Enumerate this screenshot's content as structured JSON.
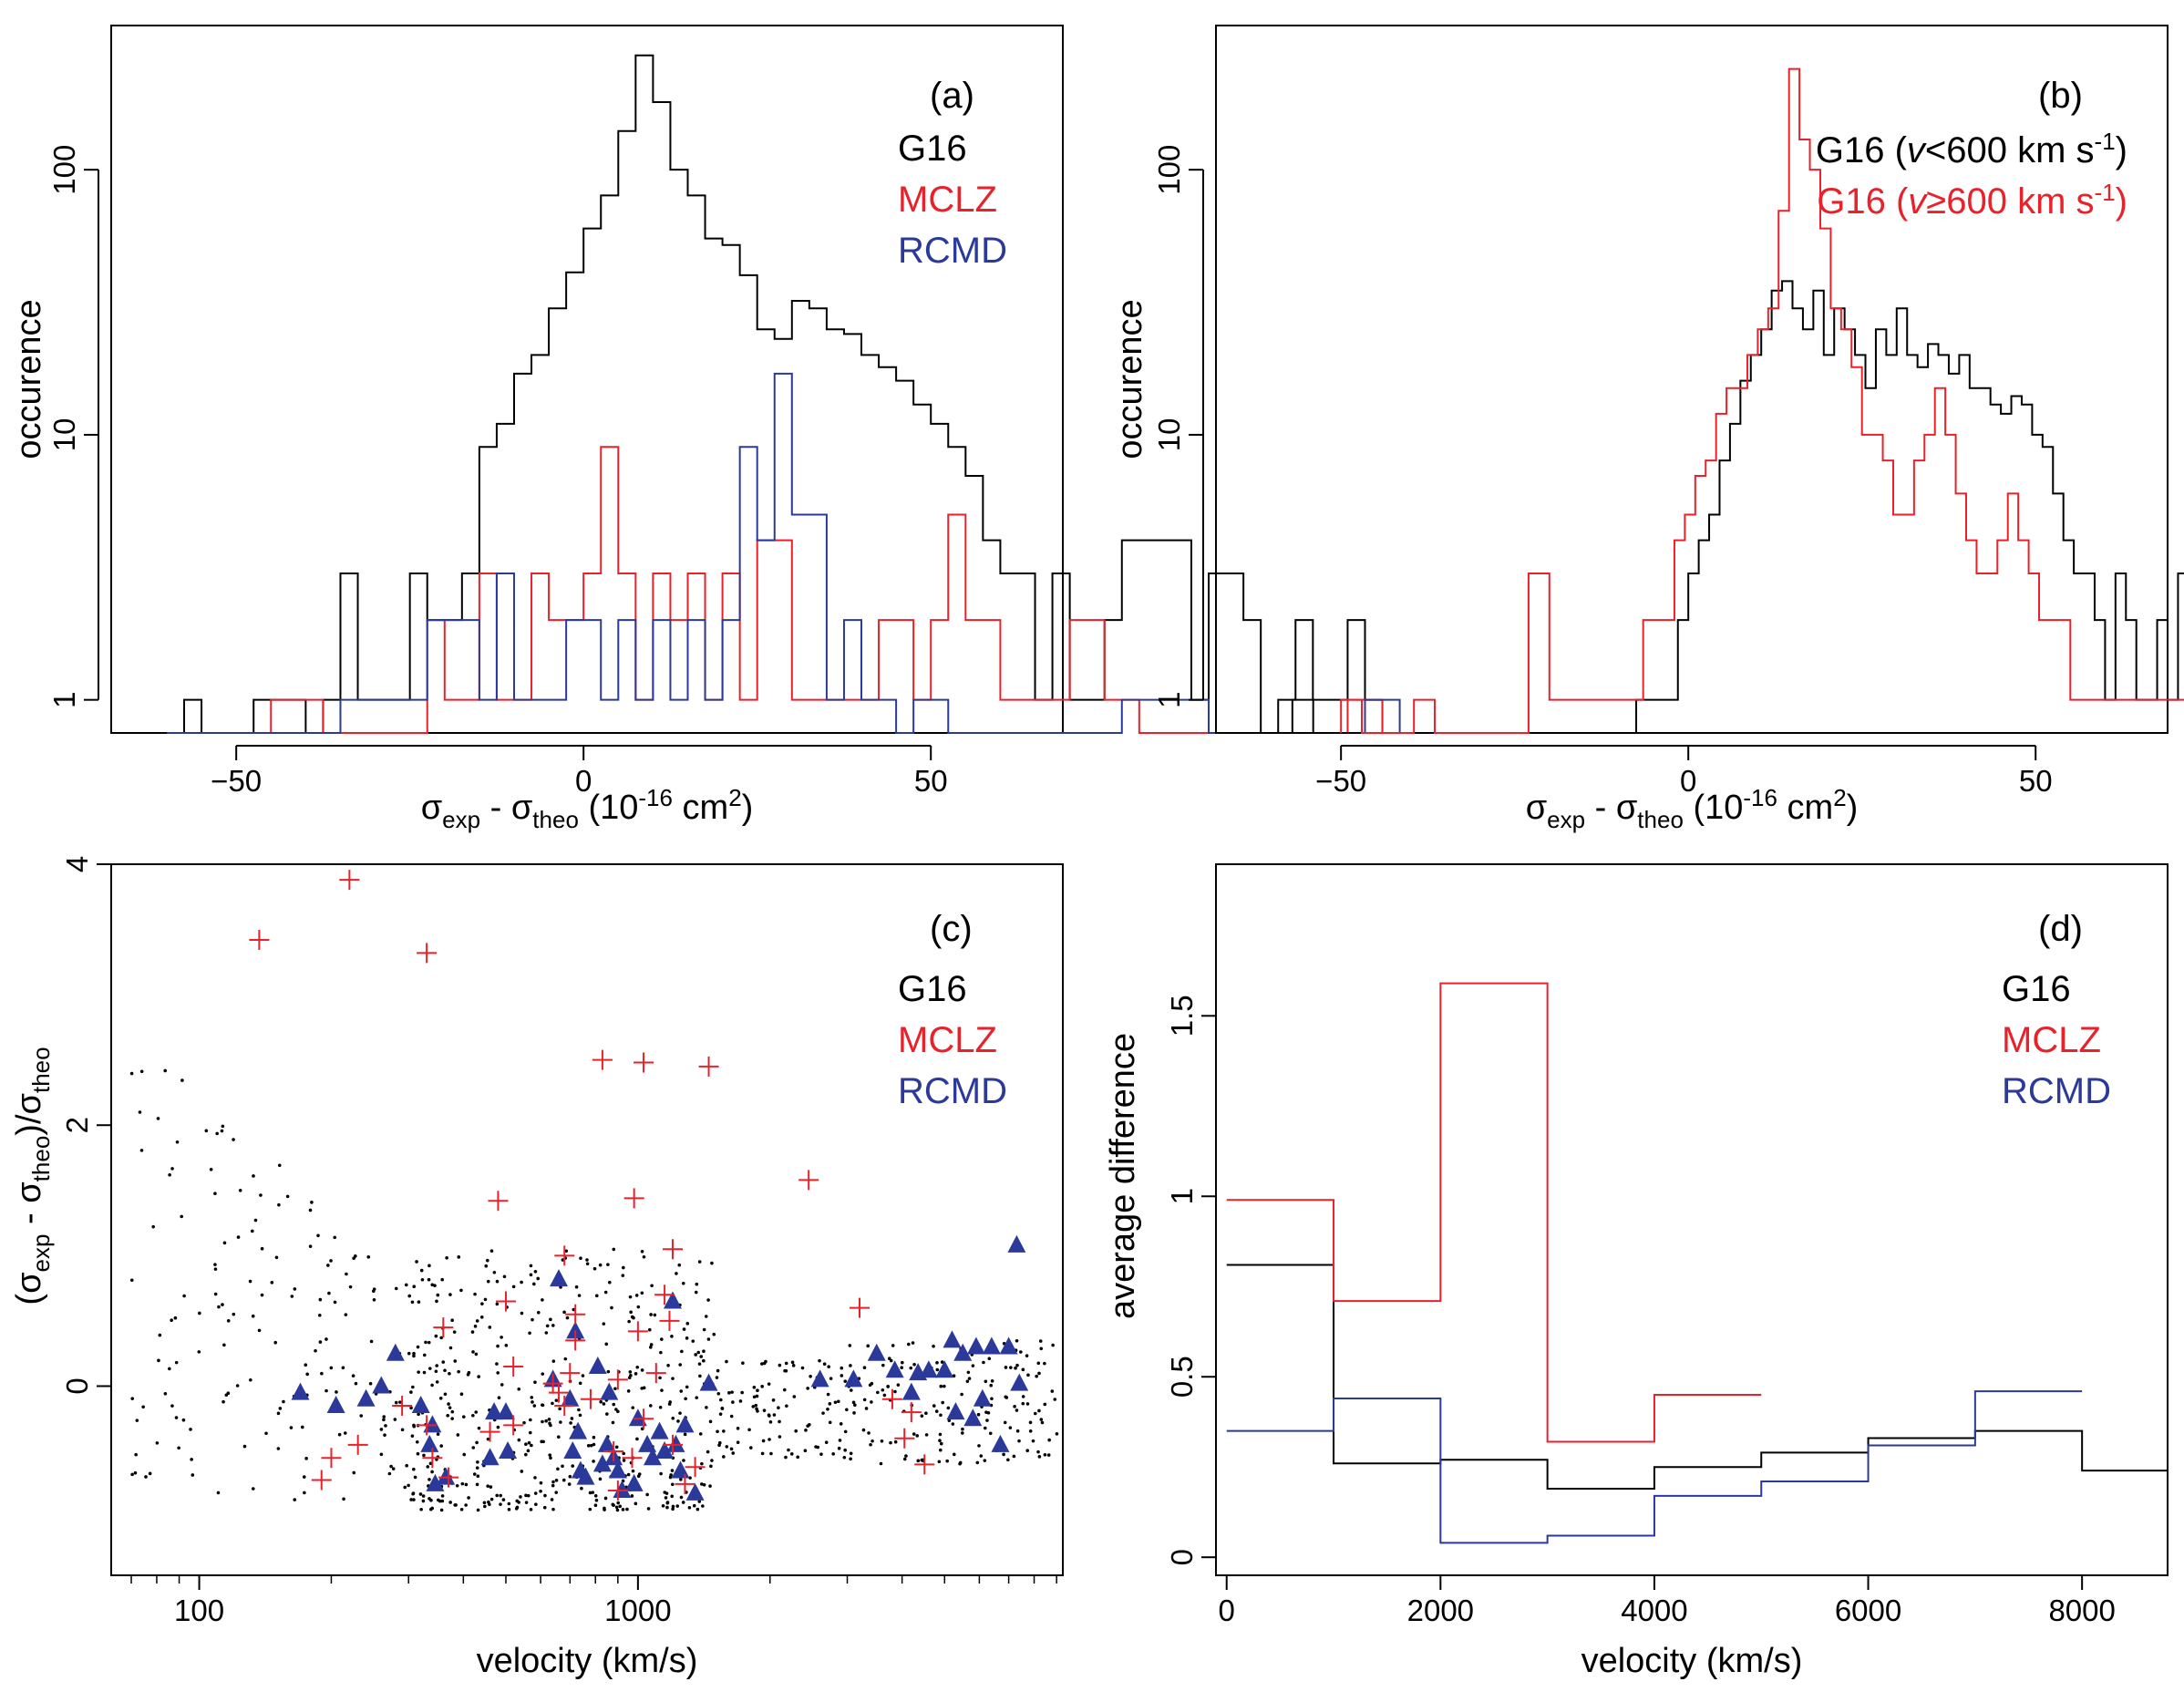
{
  "colors": {
    "black": "#000000",
    "red": "#e8212b",
    "blue": "#2b3a9a"
  },
  "chart_data": [
    {
      "panel": "a",
      "type": "histogram-step",
      "panel_label": "(a)",
      "xlabel": {
        "main": "σ",
        "sub1": "exp",
        "mid": " - σ",
        "sub2": "theo",
        "tail": " (10",
        "sup": "-16",
        "end": " cm",
        "sup2": "2",
        "close": ")"
      },
      "ylabel": "occurence",
      "xlim": [
        -68,
        69
      ],
      "ylim_log": [
        0.75,
        350
      ],
      "x_ticks": [
        -50,
        0,
        50
      ],
      "x_tick_labels": [
        "−50",
        "0",
        "50"
      ],
      "y_ticks": [
        1,
        10,
        100
      ],
      "y_tick_labels": [
        "1",
        "10",
        "100"
      ],
      "bin_width": 2.5,
      "legend": [
        {
          "label": "G16",
          "color": "#000000"
        },
        {
          "label": "MCLZ",
          "color": "#e8212b"
        },
        {
          "label": "RCMD",
          "color": "#2b3a9a"
        }
      ],
      "series": [
        {
          "name": "G16",
          "color": "#000000",
          "start": -60,
          "values": [
            0,
            1,
            0,
            0,
            0,
            1,
            1,
            1,
            0,
            1,
            3,
            1,
            1,
            1,
            3,
            2,
            2,
            3,
            9,
            11,
            17,
            20,
            30,
            41,
            60,
            80,
            140,
            270,
            180,
            100,
            80,
            55,
            52,
            40,
            25,
            23,
            32,
            30,
            25,
            24,
            20,
            18,
            16,
            13,
            11,
            9,
            7,
            4,
            3,
            3,
            1,
            3,
            1,
            1,
            2,
            4,
            4,
            4,
            4,
            1,
            3,
            3,
            2,
            0,
            1,
            2,
            1,
            1,
            2,
            1,
            0
          ]
        },
        {
          "name": "MCLZ",
          "color": "#e8212b",
          "start": -60,
          "values": [
            0,
            0,
            0,
            0,
            0,
            0,
            1,
            1,
            1,
            0,
            0,
            0,
            0,
            0,
            0,
            2,
            1,
            1,
            3,
            1,
            1,
            3,
            2,
            2,
            3,
            9,
            3,
            1,
            3,
            2,
            3,
            1,
            3,
            1,
            4,
            4,
            1,
            1,
            1,
            1,
            1,
            2,
            2,
            1,
            2,
            5,
            2,
            2,
            1,
            1,
            1,
            1,
            2,
            2,
            1,
            1,
            0,
            0,
            0,
            0,
            0,
            0,
            0,
            0,
            0,
            0,
            0,
            0,
            1,
            1,
            0
          ]
        },
        {
          "name": "RCMD",
          "color": "#2b3a9a",
          "start": -60,
          "values": [
            0,
            0,
            0,
            0,
            0,
            0,
            0,
            0,
            0,
            0,
            1,
            1,
            1,
            1,
            1,
            2,
            2,
            2,
            1,
            3,
            1,
            1,
            1,
            2,
            2,
            1,
            2,
            1,
            2,
            1,
            2,
            1,
            2,
            9,
            4,
            17,
            5,
            5,
            1,
            2,
            1,
            1,
            0,
            1,
            1,
            0,
            0,
            0,
            0,
            0,
            0,
            0,
            0,
            0,
            0,
            1,
            1,
            1,
            1,
            1,
            0,
            0,
            0,
            0,
            0,
            0,
            0,
            0,
            0,
            1,
            1
          ]
        }
      ]
    },
    {
      "panel": "b",
      "type": "histogram-step",
      "panel_label": "(b)",
      "xlabel": {
        "main": "σ",
        "sub1": "exp",
        "mid": " - σ",
        "sub2": "theo",
        "tail": " (10",
        "sup": "-16",
        "end": " cm",
        "sup2": "2",
        "close": ")"
      },
      "ylabel": "occurence",
      "xlim": [
        -68,
        69
      ],
      "ylim_log": [
        0.75,
        350
      ],
      "x_ticks": [
        -50,
        0,
        50
      ],
      "x_tick_labels": [
        "−50",
        "0",
        "50"
      ],
      "y_ticks": [
        1,
        10,
        100
      ],
      "y_tick_labels": [
        "1",
        "10",
        "100"
      ],
      "bin_width": 1.5,
      "legend_lines": [
        {
          "color": "#000000",
          "pre": "G16 (",
          "italic": "v",
          "post": "<600 km s",
          "sup": "-1",
          "close": ")"
        },
        {
          "color": "#e8212b",
          "pre": "G16 (",
          "italic": "v",
          "post": "≥600 km s",
          "sup": "-1",
          "close": ")"
        }
      ],
      "series": [
        {
          "name": "G16 (v<600 km s-1)",
          "color": "#000000",
          "start": -57,
          "values": [
            1,
            1,
            0,
            0,
            0,
            0,
            0,
            0,
            0,
            0,
            0,
            0,
            0,
            0,
            0,
            0,
            0,
            0,
            0,
            0,
            0,
            0,
            0,
            0,
            0,
            0,
            0,
            0,
            0,
            0,
            0,
            0,
            0,
            1,
            1,
            1,
            1,
            2,
            3,
            4,
            5,
            8,
            11,
            16,
            20,
            25,
            35,
            38,
            30,
            25,
            35,
            20,
            30,
            25,
            20,
            15,
            25,
            20,
            30,
            20,
            18,
            22,
            20,
            17,
            20,
            15,
            15,
            13,
            12,
            14,
            13,
            10,
            9,
            6,
            4,
            3,
            3,
            2,
            1,
            3,
            2,
            1,
            1,
            2,
            1,
            3,
            3,
            2,
            1,
            1,
            1,
            2,
            2,
            1,
            3,
            2,
            1,
            1,
            3,
            2,
            1
          ]
        },
        {
          "name": "G16 (v≥600 km s-1)",
          "color": "#e8212b",
          "start": -50,
          "values": [
            1,
            1,
            0,
            0,
            0,
            0,
            0,
            1,
            1,
            0,
            0,
            0,
            0,
            0,
            0,
            0,
            0,
            0,
            3,
            3,
            1,
            1,
            1,
            1,
            1,
            1,
            1,
            1,
            1,
            2,
            2,
            2,
            4,
            5,
            7,
            8,
            12,
            15,
            15,
            20,
            25,
            30,
            70,
            240,
            130,
            100,
            60,
            30,
            25,
            18,
            10,
            10,
            8,
            5,
            5,
            8,
            10,
            15,
            10,
            6,
            4,
            3,
            3,
            4,
            6,
            4,
            3,
            2,
            2,
            2,
            1,
            1,
            1,
            1,
            1,
            1,
            1,
            1,
            1,
            1,
            1,
            1,
            1,
            1,
            1,
            1,
            1,
            1,
            1,
            1,
            1,
            1,
            1,
            0,
            0,
            0,
            0,
            0,
            0,
            0,
            0
          ]
        }
      ]
    },
    {
      "panel": "c",
      "type": "scatter",
      "panel_label": "(c)",
      "xlabel": "velocity (km/s)",
      "ylabel": {
        "pre": "(σ",
        "sub1": "exp",
        "mid": " - σ",
        "sub2": "theo",
        "post": ")/σ",
        "sub3": "theo"
      },
      "xscale": "log",
      "xlim": [
        63,
        9300
      ],
      "ylim": [
        -1.45,
        4.0
      ],
      "x_ticks": [
        100,
        1000
      ],
      "x_tick_labels": [
        "100",
        "1000"
      ],
      "y_ticks": [
        0,
        2,
        4
      ],
      "y_tick_labels": [
        "0",
        "2",
        "4"
      ],
      "legend": [
        {
          "label": "G16",
          "color": "#000000"
        },
        {
          "label": "MCLZ",
          "color": "#e8212b"
        },
        {
          "label": "RCMD",
          "color": "#2b3a9a"
        }
      ],
      "series": [
        {
          "name": "G16",
          "marker": "dot",
          "color": "#000000",
          "note": "about 900 small points; cloud from 70 to 9000 km/s, mostly between -1 and 2"
        },
        {
          "name": "MCLZ",
          "marker": "plus",
          "color": "#e8212b",
          "points": [
            [
              137,
              3.42
            ],
            [
              220,
              3.88
            ],
            [
              330,
              3.32
            ],
            [
              830,
              2.5
            ],
            [
              1030,
              2.48
            ],
            [
              1450,
              2.45
            ],
            [
              2450,
              1.58
            ],
            [
              980,
              1.44
            ],
            [
              480,
              1.42
            ],
            [
              3200,
              0.6
            ],
            [
              1200,
              1.05
            ],
            [
              680,
              1.0
            ],
            [
              720,
              0.55
            ],
            [
              500,
              0.65
            ],
            [
              360,
              0.45
            ],
            [
              1150,
              0.7
            ],
            [
              1000,
              0.42
            ],
            [
              1180,
              0.5
            ],
            [
              720,
              0.35
            ],
            [
              520,
              0.15
            ],
            [
              900,
              0.05
            ],
            [
              1100,
              0.1
            ],
            [
              640,
              0.02
            ],
            [
              3800,
              -0.1
            ],
            [
              4200,
              -0.2
            ],
            [
              290,
              -0.15
            ],
            [
              330,
              -0.3
            ],
            [
              460,
              -0.35
            ],
            [
              520,
              -0.3
            ],
            [
              660,
              -0.05
            ],
            [
              780,
              -0.1
            ],
            [
              1030,
              -0.25
            ],
            [
              880,
              -0.5
            ],
            [
              970,
              -0.55
            ],
            [
              1200,
              -0.45
            ],
            [
              4500,
              -0.6
            ],
            [
              200,
              -0.55
            ],
            [
              230,
              -0.45
            ],
            [
              340,
              -0.55
            ],
            [
              370,
              -0.7
            ],
            [
              190,
              -0.72
            ],
            [
              4050,
              -0.4
            ],
            [
              1280,
              -0.75
            ],
            [
              900,
              -0.8
            ],
            [
              1350,
              -0.62
            ],
            [
              680,
              -0.15
            ],
            [
              700,
              0.1
            ]
          ]
        },
        {
          "name": "RCMD",
          "marker": "triangle",
          "color": "#2b3a9a",
          "points": [
            [
              170,
              -0.05
            ],
            [
              205,
              -0.15
            ],
            [
              240,
              -0.1
            ],
            [
              260,
              0.0
            ],
            [
              280,
              0.25
            ],
            [
              320,
              -0.15
            ],
            [
              335,
              -0.45
            ],
            [
              345,
              -0.75
            ],
            [
              365,
              -0.7
            ],
            [
              340,
              -0.3
            ],
            [
              470,
              -0.2
            ],
            [
              500,
              -0.2
            ],
            [
              505,
              -0.5
            ],
            [
              460,
              -0.55
            ],
            [
              640,
              0.05
            ],
            [
              660,
              0.82
            ],
            [
              720,
              0.42
            ],
            [
              700,
              -0.1
            ],
            [
              730,
              -0.35
            ],
            [
              710,
              -0.5
            ],
            [
              740,
              -0.65
            ],
            [
              760,
              -0.7
            ],
            [
              810,
              0.15
            ],
            [
              860,
              -0.05
            ],
            [
              850,
              -0.45
            ],
            [
              830,
              -0.6
            ],
            [
              880,
              -0.55
            ],
            [
              900,
              -0.65
            ],
            [
              920,
              -0.8
            ],
            [
              980,
              -0.75
            ],
            [
              1000,
              -0.25
            ],
            [
              1050,
              -0.45
            ],
            [
              1080,
              -0.55
            ],
            [
              1120,
              -0.35
            ],
            [
              1150,
              -0.5
            ],
            [
              1200,
              0.65
            ],
            [
              1220,
              -0.45
            ],
            [
              1250,
              -0.65
            ],
            [
              1280,
              -0.3
            ],
            [
              1350,
              -0.82
            ],
            [
              1450,
              0.02
            ],
            [
              2600,
              0.05
            ],
            [
              3100,
              0.05
            ],
            [
              3500,
              0.25
            ],
            [
              3850,
              0.12
            ],
            [
              4350,
              0.1
            ],
            [
              4600,
              0.12
            ],
            [
              5000,
              0.12
            ],
            [
              5200,
              0.35
            ],
            [
              5500,
              0.25
            ],
            [
              5900,
              0.3
            ],
            [
              6100,
              -0.1
            ],
            [
              6400,
              0.3
            ],
            [
              6700,
              -0.45
            ],
            [
              7000,
              0.3
            ],
            [
              7400,
              0.02
            ],
            [
              7300,
              1.08
            ],
            [
              5300,
              -0.2
            ],
            [
              5800,
              -0.25
            ],
            [
              4200,
              -0.05
            ]
          ]
        }
      ]
    },
    {
      "panel": "d",
      "type": "step",
      "panel_label": "(d)",
      "xlabel": "velocity (km/s)",
      "ylabel": "average difference",
      "xlim": [
        -100,
        8800
      ],
      "ylim": [
        -0.05,
        1.92
      ],
      "x_ticks": [
        0,
        2000,
        4000,
        6000,
        8000
      ],
      "x_tick_labels": [
        "0",
        "2000",
        "4000",
        "6000",
        "8000"
      ],
      "y_ticks": [
        0,
        0.5,
        1,
        1.5
      ],
      "y_tick_labels": [
        "0",
        "0.5",
        "1",
        "1.5"
      ],
      "legend": [
        {
          "label": "G16",
          "color": "#000000"
        },
        {
          "label": "MCLZ",
          "color": "#e8212b"
        },
        {
          "label": "RCMD",
          "color": "#2b3a9a"
        }
      ],
      "bin_edges": [
        0,
        1000,
        2000,
        3000,
        4000,
        5000,
        6000,
        7000,
        8000,
        9000
      ],
      "series": [
        {
          "name": "G16",
          "color": "#000000",
          "values": [
            0.81,
            0.26,
            0.27,
            0.19,
            0.25,
            0.29,
            0.33,
            0.35,
            0.24
          ]
        },
        {
          "name": "MCLZ",
          "color": "#e8212b",
          "values": [
            0.99,
            0.71,
            1.59,
            0.32,
            0.45
          ]
        },
        {
          "name": "RCMD",
          "color": "#2b3a9a",
          "values": [
            0.35,
            0.44,
            0.04,
            0.06,
            0.17,
            0.21,
            0.31,
            0.46
          ]
        }
      ]
    }
  ]
}
